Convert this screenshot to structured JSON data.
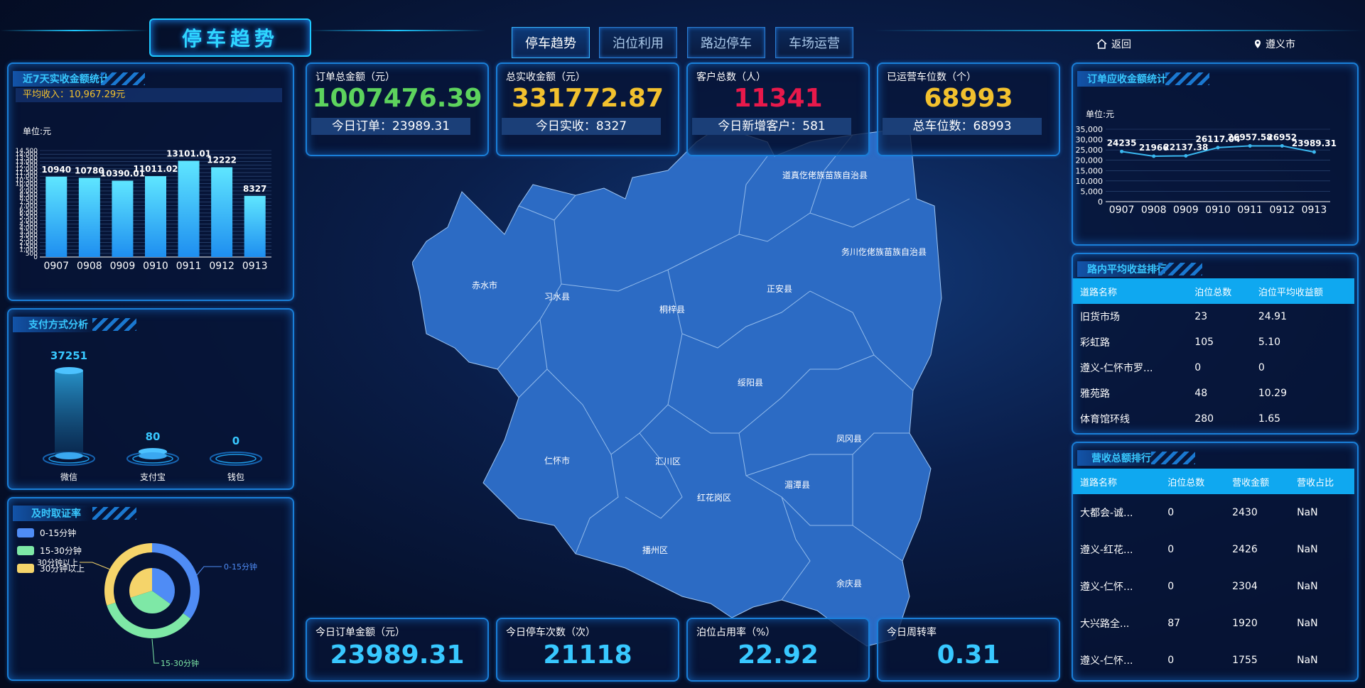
{
  "header": {
    "title": "停车趋势",
    "tabs": [
      {
        "label": "停车趋势",
        "active": true
      },
      {
        "label": "泊位利用",
        "active": false
      },
      {
        "label": "路边停车",
        "active": false
      },
      {
        "label": "车场运营",
        "active": false
      }
    ],
    "back_label": "返回",
    "city_label": "遵义市"
  },
  "colors": {
    "accent": "#1ec8ff",
    "green": "#5dd35d",
    "gold": "#f2c12e",
    "red": "#e8194b",
    "map_fill": "#2c6bc4"
  },
  "weekly_income": {
    "title": "近7天实收金额统计",
    "avg_label": "平均收入：10,967.29元",
    "unit": "单位:元",
    "y_ticks": [
      "14,500",
      "14,000",
      "13,500",
      "13,000",
      "12,500",
      "12,000",
      "11,500",
      "11,000",
      "10,500",
      "10,000",
      "9,500",
      "9,000",
      "8,500",
      "8,000",
      "7,500",
      "7,000",
      "6,500",
      "6,000",
      "5,500",
      "5,000",
      "4,500",
      "4,000",
      "3,500",
      "3,000",
      "2,500",
      "2,000",
      "1,500",
      "1,000",
      "500",
      "0"
    ]
  },
  "chart_data": [
    {
      "type": "bar",
      "title": "近7天实收金额统计",
      "categories": [
        "0907",
        "0908",
        "0909",
        "0910",
        "0911",
        "0912",
        "0913"
      ],
      "values": [
        10940,
        10780,
        10390.01,
        11011.02,
        13101.01,
        12222,
        8327
      ],
      "value_labels": [
        "10940",
        "10780",
        "10390.01",
        "11011.02",
        "13101.01",
        "12222",
        "8327"
      ],
      "ylabel": "单位:元",
      "ylim": [
        0,
        14500
      ]
    },
    {
      "type": "bar",
      "title": "支付方式分析",
      "categories": [
        "微信",
        "支付宝",
        "钱包"
      ],
      "values": [
        37251,
        80,
        0
      ],
      "value_labels": [
        "37251",
        "80",
        "0"
      ]
    },
    {
      "type": "pie",
      "title": "及时取证率",
      "categories": [
        "0-15分钟",
        "15-30分钟",
        "30分钟以上"
      ],
      "values": [
        35,
        35,
        30
      ],
      "colors": [
        "#4f8cf5",
        "#7ee8a6",
        "#f5d46a"
      ]
    },
    {
      "type": "line",
      "title": "订单应收金额统计",
      "categories": [
        "0907",
        "0908",
        "0909",
        "0910",
        "0911",
        "0912",
        "0913"
      ],
      "values": [
        24235,
        21966,
        22137.38,
        26117.04,
        26957.58,
        26952,
        23989.31
      ],
      "value_labels": [
        "24235",
        "21966",
        "22137.38",
        "26117.04",
        "26957.58",
        "26952",
        "23989.31"
      ],
      "ylabel": "单位:元",
      "y_ticks": [
        "35,000",
        "30,000",
        "25,000",
        "20,000",
        "15,000",
        "10,000",
        "5,000",
        "0"
      ],
      "ylim": [
        0,
        35000
      ]
    }
  ],
  "payment": {
    "title": "支付方式分析"
  },
  "timely": {
    "title": "及时取证率",
    "legend": [
      "0-15分钟",
      "15-30分钟",
      "30分钟以上"
    ],
    "callout_top": "0-15分钟",
    "callout_bottom": "15-30分钟",
    "callout_left": "30分钟以上"
  },
  "stats_top": [
    {
      "label": "订单总金额（元）",
      "value": "1007476.39",
      "sub": "今日订单：23989.31",
      "color": "#5dd35d"
    },
    {
      "label": "总实收金额（元）",
      "value": "331772.87",
      "sub": "今日实收：8327",
      "color": "#f2c12e"
    },
    {
      "label": "客户总数（人）",
      "value": "11341",
      "sub": "今日新增客户：581",
      "color": "#e8194b"
    },
    {
      "label": "已运营车位数（个）",
      "value": "68993",
      "sub": "总车位数：68993",
      "color": "#f2c12e"
    }
  ],
  "stats_bottom": [
    {
      "label": "今日订单金额（元）",
      "value": "23989.31"
    },
    {
      "label": "今日停车次数（次）",
      "value": "21118"
    },
    {
      "label": "泊位占用率（%）",
      "value": "22.92"
    },
    {
      "label": "今日周转率",
      "value": "0.31"
    }
  ],
  "map": {
    "regions": [
      "道真仡佬族苗族自治县",
      "务川仡佬族苗族自治县",
      "赤水市",
      "习水县",
      "桐梓县",
      "正安县",
      "绥阳县",
      "凤冈县",
      "仁怀市",
      "汇川区",
      "红花岗区",
      "湄潭县",
      "播州区",
      "余庆县"
    ]
  },
  "order_income": {
    "title": "订单应收金额统计",
    "unit": "单位:元"
  },
  "road_avg": {
    "title": "路内平均收益排行",
    "columns": [
      "道路名称",
      "泊位总数",
      "泊位平均收益额"
    ],
    "rows": [
      [
        "旧货市场",
        "23",
        "24.91"
      ],
      [
        "彩虹路",
        "105",
        "5.10"
      ],
      [
        "遵义-仁怀市罗...",
        "0",
        "0"
      ],
      [
        "雅苑路",
        "48",
        "10.29"
      ],
      [
        "体育馆环线",
        "280",
        "1.65"
      ]
    ]
  },
  "revenue_rank": {
    "title": "营收总额排行",
    "columns": [
      "道路名称",
      "泊位总数",
      "营收金额",
      "营收占比"
    ],
    "rows": [
      [
        "大都会-诚...",
        "0",
        "2430",
        "NaN"
      ],
      [
        "遵义-红花...",
        "0",
        "2426",
        "NaN"
      ],
      [
        "遵义-仁怀...",
        "0",
        "2304",
        "NaN"
      ],
      [
        "大兴路全...",
        "87",
        "1920",
        "NaN"
      ],
      [
        "遵义-仁怀...",
        "0",
        "1755",
        "NaN"
      ]
    ]
  }
}
